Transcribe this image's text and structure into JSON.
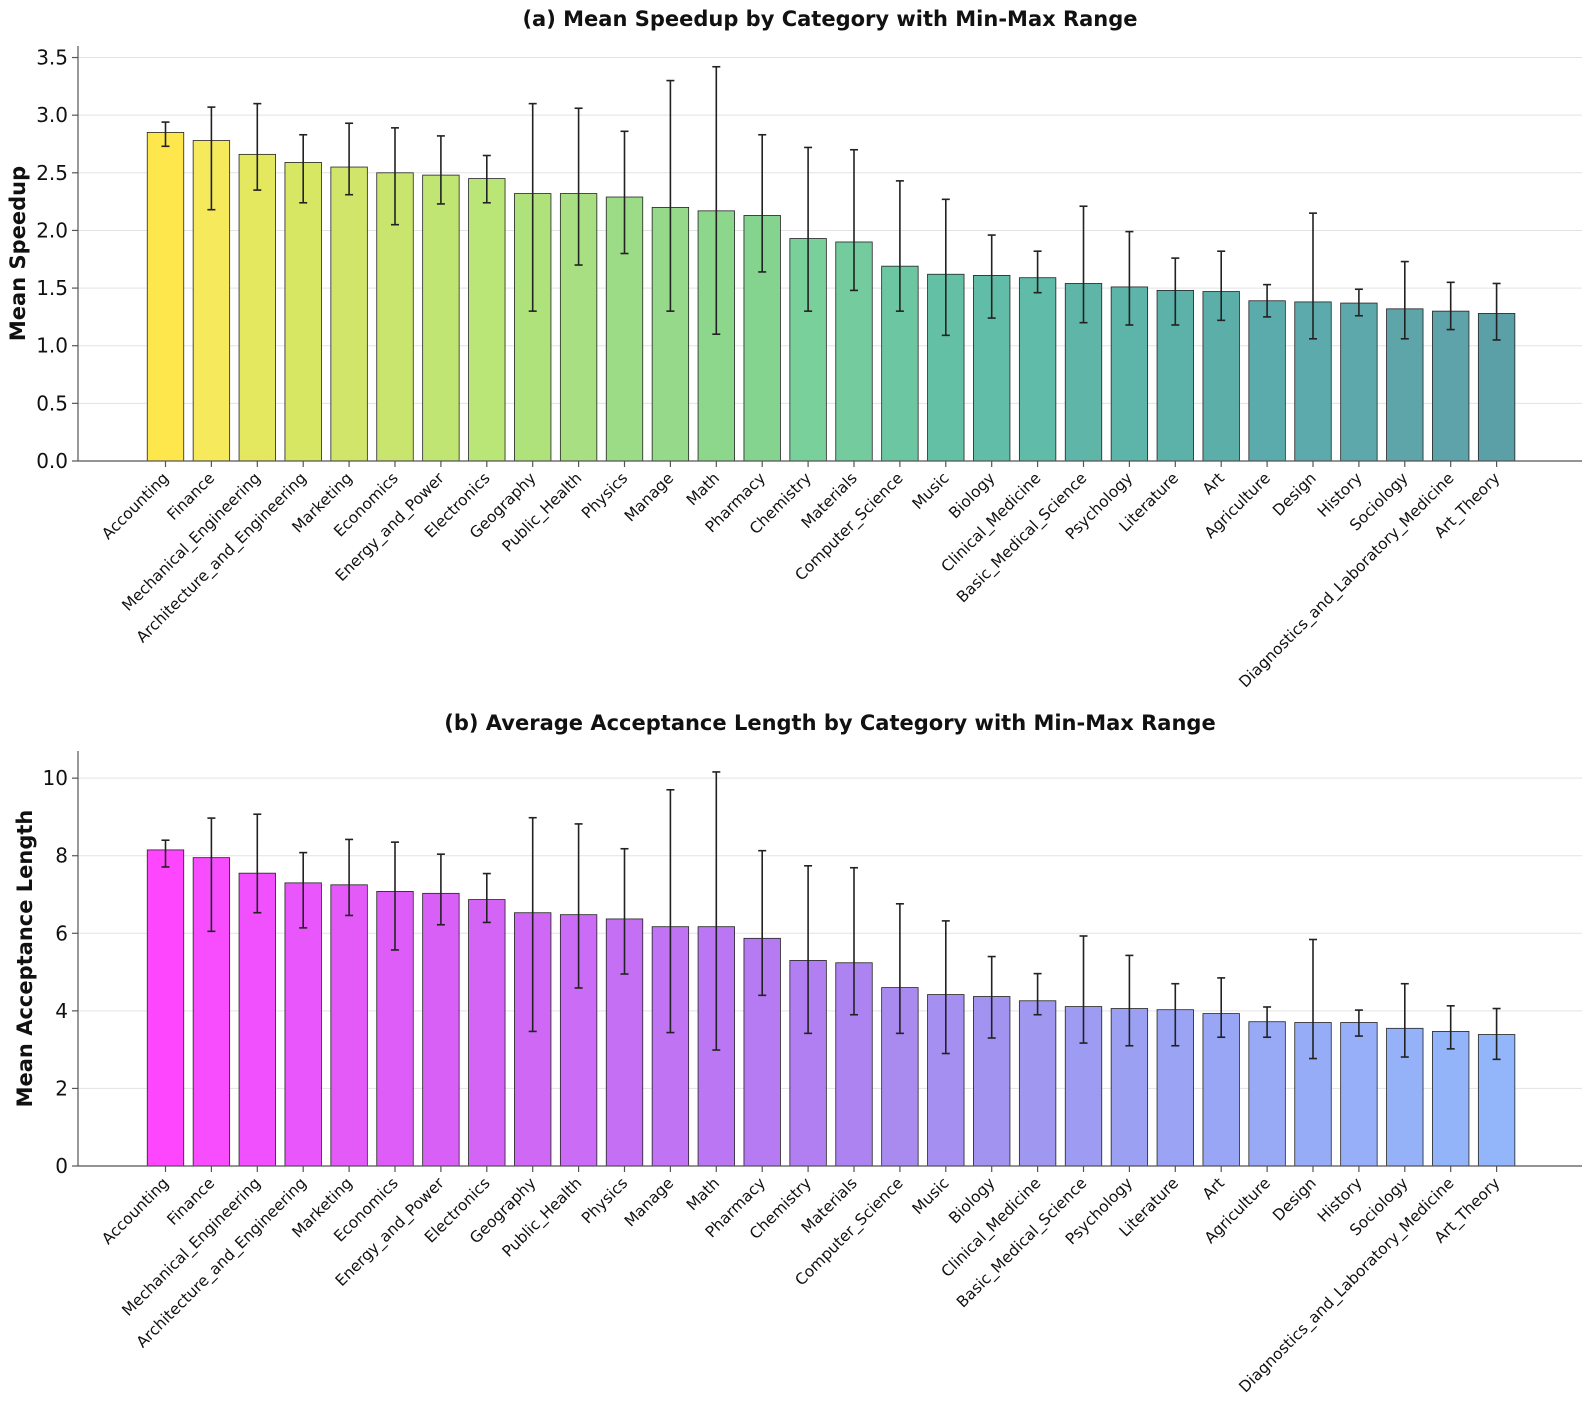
{
  "chart_data": [
    {
      "type": "bar",
      "title": "(a) Mean Speedup by Category with Min-Max Range",
      "xlabel": "",
      "ylabel": "Mean Speedup",
      "ylim": [
        0,
        3.6
      ],
      "yticks": [
        "0.0",
        "0.5",
        "1.0",
        "1.5",
        "2.0",
        "2.5",
        "3.0",
        "3.5"
      ],
      "ytick_values": [
        0,
        0.5,
        1.0,
        1.5,
        2.0,
        2.5,
        3.0,
        3.5
      ],
      "grid": "y",
      "colors": [
        "#fde74c",
        "#f6e95c",
        "#e3e85e",
        "#d8e763",
        "#d1e56a",
        "#c9e56d",
        "#c1e572",
        "#b9e677",
        "#b0e27c",
        "#a7df82",
        "#9ddc86",
        "#96d98a",
        "#8dd78d",
        "#84d38f",
        "#7ad09a",
        "#74cb9d",
        "#6cc6a2",
        "#64c0a5",
        "#62bda8",
        "#60bba8",
        "#5fb6a8",
        "#5db4a8",
        "#5cb1a9",
        "#5caea9",
        "#5cabac",
        "#5caaab",
        "#5ca8aa",
        "#5ea5a9",
        "#5da3a9",
        "#5aa0a6"
      ],
      "categories": [
        "Accounting",
        "Finance",
        "Mechanical_Engineering",
        "Architecture_and_Engineering",
        "Marketing",
        "Economics",
        "Energy_and_Power",
        "Electronics",
        "Geography",
        "Public_Health",
        "Physics",
        "Manage",
        "Math",
        "Pharmacy",
        "Chemistry",
        "Materials",
        "Computer_Science",
        "Music",
        "Biology",
        "Clinical_Medicine",
        "Basic_Medical_Science",
        "Psychology",
        "Literature",
        "Art",
        "Agriculture",
        "Design",
        "History",
        "Sociology",
        "Diagnostics_and_Laboratory_Medicine",
        "Art_Theory"
      ],
      "values": [
        2.85,
        2.78,
        2.66,
        2.59,
        2.55,
        2.5,
        2.48,
        2.45,
        2.32,
        2.32,
        2.29,
        2.2,
        2.17,
        2.13,
        1.93,
        1.9,
        1.69,
        1.62,
        1.61,
        1.59,
        1.54,
        1.51,
        1.48,
        1.47,
        1.39,
        1.38,
        1.37,
        1.32,
        1.3,
        1.28
      ],
      "mins": [
        2.73,
        2.18,
        2.35,
        2.24,
        2.31,
        2.05,
        2.23,
        2.24,
        1.3,
        1.7,
        1.8,
        1.3,
        1.1,
        1.64,
        1.3,
        1.48,
        1.3,
        1.09,
        1.24,
        1.46,
        1.2,
        1.18,
        1.18,
        1.22,
        1.25,
        1.06,
        1.26,
        1.06,
        1.14,
        1.05
      ],
      "maxs": [
        2.94,
        3.07,
        3.1,
        2.83,
        2.93,
        2.89,
        2.82,
        2.65,
        3.1,
        3.06,
        2.86,
        3.3,
        3.42,
        2.83,
        2.72,
        2.7,
        2.43,
        2.27,
        1.96,
        1.82,
        2.21,
        1.99,
        1.76,
        1.82,
        1.53,
        2.15,
        1.49,
        1.73,
        1.55,
        1.54
      ]
    },
    {
      "type": "bar",
      "title": "(b) Average Acceptance Length by Category with Min-Max Range",
      "xlabel": "",
      "ylabel": "Mean Acceptance Length",
      "ylim": [
        0,
        10.7
      ],
      "yticks": [
        "0",
        "2",
        "4",
        "6",
        "8",
        "10"
      ],
      "ytick_values": [
        0,
        2,
        4,
        6,
        8,
        10
      ],
      "grid": "y",
      "colors": [
        "#ff46ff",
        "#f84cff",
        "#f050fd",
        "#e956fb",
        "#e35af9",
        "#de5df8",
        "#d860f7",
        "#d464f6",
        "#cf68f5",
        "#ca6cf5",
        "#c570f4",
        "#c073f3",
        "#bb77f3",
        "#b67bf2",
        "#b17ff1",
        "#ad83f1",
        "#a98bf0",
        "#a58ff0",
        "#a393f1",
        "#a097f1",
        "#9e9cf2",
        "#9ca0f3",
        "#9aa3f4",
        "#99a6f5",
        "#98a9f6",
        "#97acf7",
        "#96aff8",
        "#95b2f9",
        "#94b4fa",
        "#93b6fb"
      ],
      "categories": [
        "Accounting",
        "Finance",
        "Mechanical_Engineering",
        "Architecture_and_Engineering",
        "Marketing",
        "Economics",
        "Energy_and_Power",
        "Electronics",
        "Geography",
        "Public_Health",
        "Physics",
        "Manage",
        "Math",
        "Pharmacy",
        "Chemistry",
        "Materials",
        "Computer_Science",
        "Music",
        "Biology",
        "Clinical_Medicine",
        "Basic_Medical_Science",
        "Psychology",
        "Literature",
        "Art",
        "Agriculture",
        "Design",
        "History",
        "Sociology",
        "Diagnostics_and_Laboratory_Medicine",
        "Art_Theory"
      ],
      "values": [
        8.15,
        7.95,
        7.55,
        7.3,
        7.25,
        7.08,
        7.03,
        6.87,
        6.53,
        6.48,
        6.37,
        6.17,
        6.17,
        5.87,
        5.3,
        5.24,
        4.6,
        4.42,
        4.37,
        4.26,
        4.11,
        4.06,
        4.03,
        3.93,
        3.72,
        3.7,
        3.7,
        3.55,
        3.47,
        3.39
      ],
      "mins": [
        7.71,
        6.05,
        6.53,
        6.14,
        6.46,
        5.57,
        6.22,
        6.28,
        3.47,
        4.59,
        4.95,
        3.44,
        2.99,
        4.4,
        3.42,
        3.9,
        3.42,
        2.9,
        3.3,
        3.9,
        3.17,
        3.1,
        3.1,
        3.32,
        3.32,
        2.77,
        3.35,
        2.81,
        3.02,
        2.75
      ],
      "maxs": [
        8.4,
        8.97,
        9.07,
        8.08,
        8.42,
        8.35,
        8.04,
        7.54,
        8.98,
        8.82,
        8.18,
        9.7,
        10.16,
        8.13,
        7.74,
        7.69,
        6.76,
        6.32,
        5.4,
        4.96,
        5.93,
        5.43,
        4.7,
        4.85,
        4.1,
        5.84,
        4.02,
        4.7,
        4.13,
        4.06
      ]
    }
  ]
}
